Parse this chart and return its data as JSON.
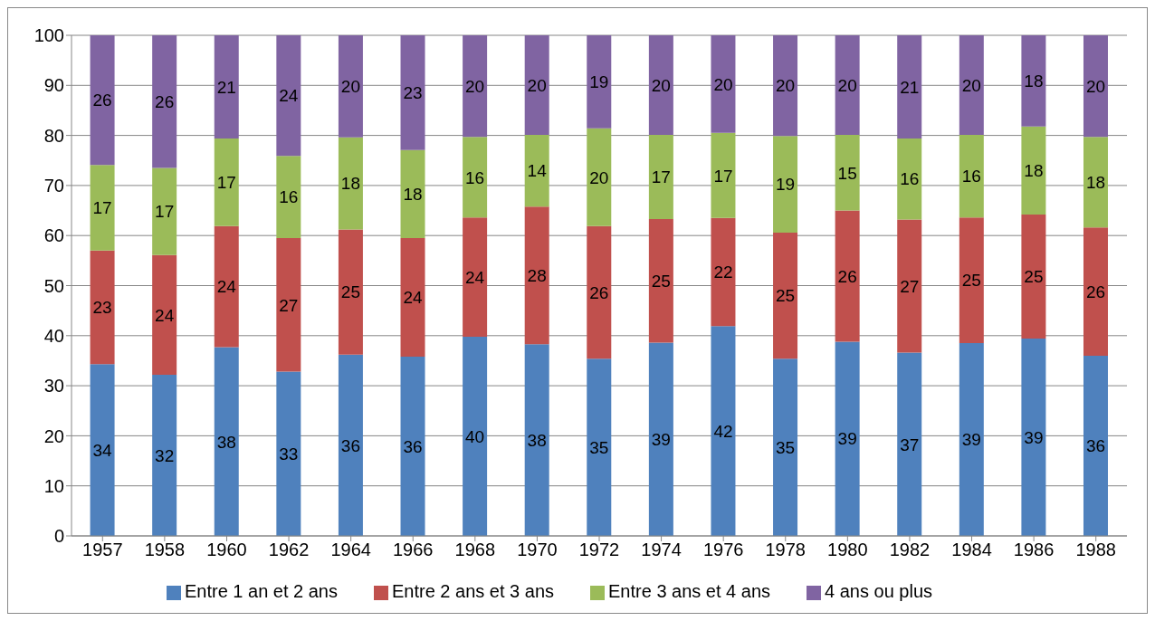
{
  "chart_data": {
    "type": "bar",
    "stacked": true,
    "categories": [
      "1957",
      "1958",
      "1960",
      "1962",
      "1964",
      "1966",
      "1968",
      "1970",
      "1972",
      "1974",
      "1976",
      "1978",
      "1980",
      "1982",
      "1984",
      "1986",
      "1988"
    ],
    "series": [
      {
        "name": "Entre 1 an et 2 ans",
        "color": "#4f81bd",
        "values": [
          34.3,
          32.2,
          37.7,
          32.8,
          36.2,
          35.8,
          39.8,
          38.3,
          35.4,
          38.6,
          41.9,
          35.4,
          38.8,
          36.6,
          38.5,
          39.4,
          36.0
        ],
        "value_labels": [
          "34",
          "32",
          "38",
          "33",
          "36",
          "36",
          "40",
          "38",
          "35",
          "39",
          "42",
          "35",
          "39",
          "37",
          "39",
          "39",
          "36"
        ]
      },
      {
        "name": "Entre 2 ans et 3 ans",
        "color": "#c0504d",
        "values": [
          22.7,
          23.9,
          24.2,
          26.7,
          25.0,
          23.7,
          23.8,
          27.5,
          26.5,
          24.7,
          21.6,
          25.2,
          26.2,
          26.6,
          25.1,
          24.8,
          25.6
        ],
        "value_labels": [
          "23",
          "24",
          "24",
          "27",
          "25",
          "24",
          "24",
          "28",
          "26",
          "25",
          "22",
          "25",
          "26",
          "27",
          "25",
          "25",
          "26"
        ]
      },
      {
        "name": "Entre 3 ans et 4 ans",
        "color": "#9bbb59",
        "values": [
          17.1,
          17.4,
          17.5,
          16.4,
          18.4,
          17.6,
          16.1,
          14.3,
          19.5,
          16.8,
          17.0,
          19.3,
          15.1,
          16.2,
          16.5,
          17.6,
          18.1
        ],
        "value_labels": [
          "17",
          "17",
          "17",
          "16",
          "18",
          "18",
          "16",
          "14",
          "20",
          "17",
          "17",
          "19",
          "15",
          "16",
          "16",
          "18",
          "18"
        ]
      },
      {
        "name": "4 ans ou plus",
        "color": "#8064a2",
        "values": [
          25.9,
          26.5,
          20.6,
          24.1,
          20.4,
          22.9,
          20.3,
          19.9,
          18.6,
          19.9,
          19.5,
          20.1,
          19.9,
          20.6,
          19.9,
          18.2,
          20.3
        ],
        "value_labels": [
          "26",
          "26",
          "21",
          "24",
          "20",
          "23",
          "20",
          "20",
          "19",
          "20",
          "20",
          "20",
          "20",
          "21",
          "20",
          "18",
          "20"
        ]
      }
    ],
    "ylim": [
      0,
      100
    ],
    "yticks": [
      0,
      10,
      20,
      30,
      40,
      50,
      60,
      70,
      80,
      90,
      100
    ],
    "grid": "y",
    "legend": "bottom"
  }
}
